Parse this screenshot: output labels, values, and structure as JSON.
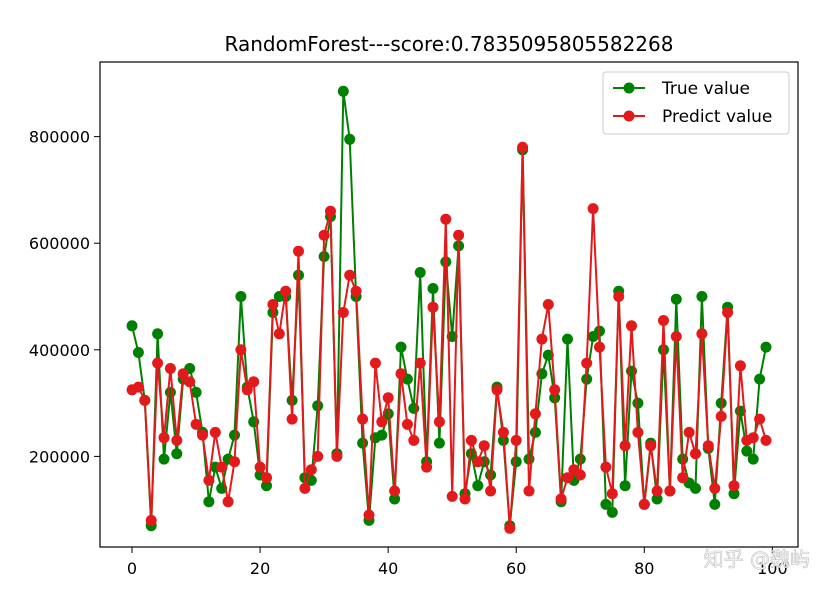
{
  "chart_data": {
    "type": "line",
    "title": "RandomForest---score:0.7835095805582268",
    "xlabel": "",
    "ylabel": "",
    "xlim": [
      -5,
      104
    ],
    "ylim": [
      30000,
      940000
    ],
    "xticks": [
      0,
      20,
      40,
      60,
      80,
      100
    ],
    "yticks": [
      200000,
      400000,
      600000,
      800000
    ],
    "grid": false,
    "legend_position": "top-right",
    "x": [
      0,
      1,
      2,
      3,
      4,
      5,
      6,
      7,
      8,
      9,
      10,
      11,
      12,
      13,
      14,
      15,
      16,
      17,
      18,
      19,
      20,
      21,
      22,
      23,
      24,
      25,
      26,
      27,
      28,
      29,
      30,
      31,
      32,
      33,
      34,
      35,
      36,
      37,
      38,
      39,
      40,
      41,
      42,
      43,
      44,
      45,
      46,
      47,
      48,
      49,
      50,
      51,
      52,
      53,
      54,
      55,
      56,
      57,
      58,
      59,
      60,
      61,
      62,
      63,
      64,
      65,
      66,
      67,
      68,
      69,
      70,
      71,
      72,
      73,
      74,
      75,
      76,
      77,
      78,
      79,
      80,
      81,
      82,
      83,
      84,
      85,
      86,
      87,
      88,
      89,
      90,
      91,
      92,
      93,
      94,
      95,
      96,
      97,
      98,
      99
    ],
    "series": [
      {
        "name": "True value",
        "color": "#008000",
        "values": [
          445000,
          395000,
          305000,
          70000,
          430000,
          195000,
          320000,
          205000,
          345000,
          365000,
          320000,
          245000,
          115000,
          180000,
          140000,
          195000,
          240000,
          500000,
          330000,
          265000,
          165000,
          145000,
          470000,
          500000,
          500000,
          305000,
          540000,
          160000,
          155000,
          295000,
          575000,
          650000,
          205000,
          885000,
          795000,
          500000,
          225000,
          80000,
          235000,
          240000,
          280000,
          120000,
          405000,
          345000,
          290000,
          545000,
          190000,
          515000,
          225000,
          565000,
          425000,
          595000,
          130000,
          205000,
          145000,
          190000,
          165000,
          330000,
          230000,
          70000,
          190000,
          775000,
          195000,
          245000,
          355000,
          390000,
          310000,
          115000,
          420000,
          155000,
          195000,
          345000,
          425000,
          435000,
          110000,
          95000,
          510000,
          145000,
          360000,
          300000,
          110000,
          225000,
          120000,
          400000,
          135000,
          495000,
          195000,
          150000,
          140000,
          500000,
          215000,
          110000,
          300000,
          480000,
          130000,
          285000,
          210000,
          195000,
          345000,
          405000
        ]
      },
      {
        "name": "Predict value",
        "color": "#e31a1c",
        "values": [
          325000,
          330000,
          305000,
          80000,
          375000,
          235000,
          365000,
          230000,
          355000,
          340000,
          260000,
          240000,
          155000,
          245000,
          180000,
          115000,
          190000,
          400000,
          325000,
          340000,
          180000,
          160000,
          485000,
          430000,
          510000,
          270000,
          585000,
          140000,
          175000,
          200000,
          615000,
          660000,
          200000,
          470000,
          540000,
          510000,
          270000,
          90000,
          375000,
          265000,
          310000,
          135000,
          355000,
          260000,
          230000,
          375000,
          180000,
          480000,
          265000,
          645000,
          125000,
          615000,
          120000,
          230000,
          190000,
          220000,
          135000,
          325000,
          245000,
          65000,
          230000,
          780000,
          135000,
          280000,
          420000,
          485000,
          325000,
          120000,
          160000,
          175000,
          165000,
          375000,
          665000,
          405000,
          180000,
          130000,
          500000,
          220000,
          445000,
          245000,
          110000,
          220000,
          135000,
          455000,
          135000,
          425000,
          160000,
          245000,
          205000,
          430000,
          220000,
          140000,
          275000,
          470000,
          145000,
          370000,
          230000,
          235000,
          270000,
          230000
        ]
      }
    ]
  },
  "watermark": "知乎 @魏屿"
}
